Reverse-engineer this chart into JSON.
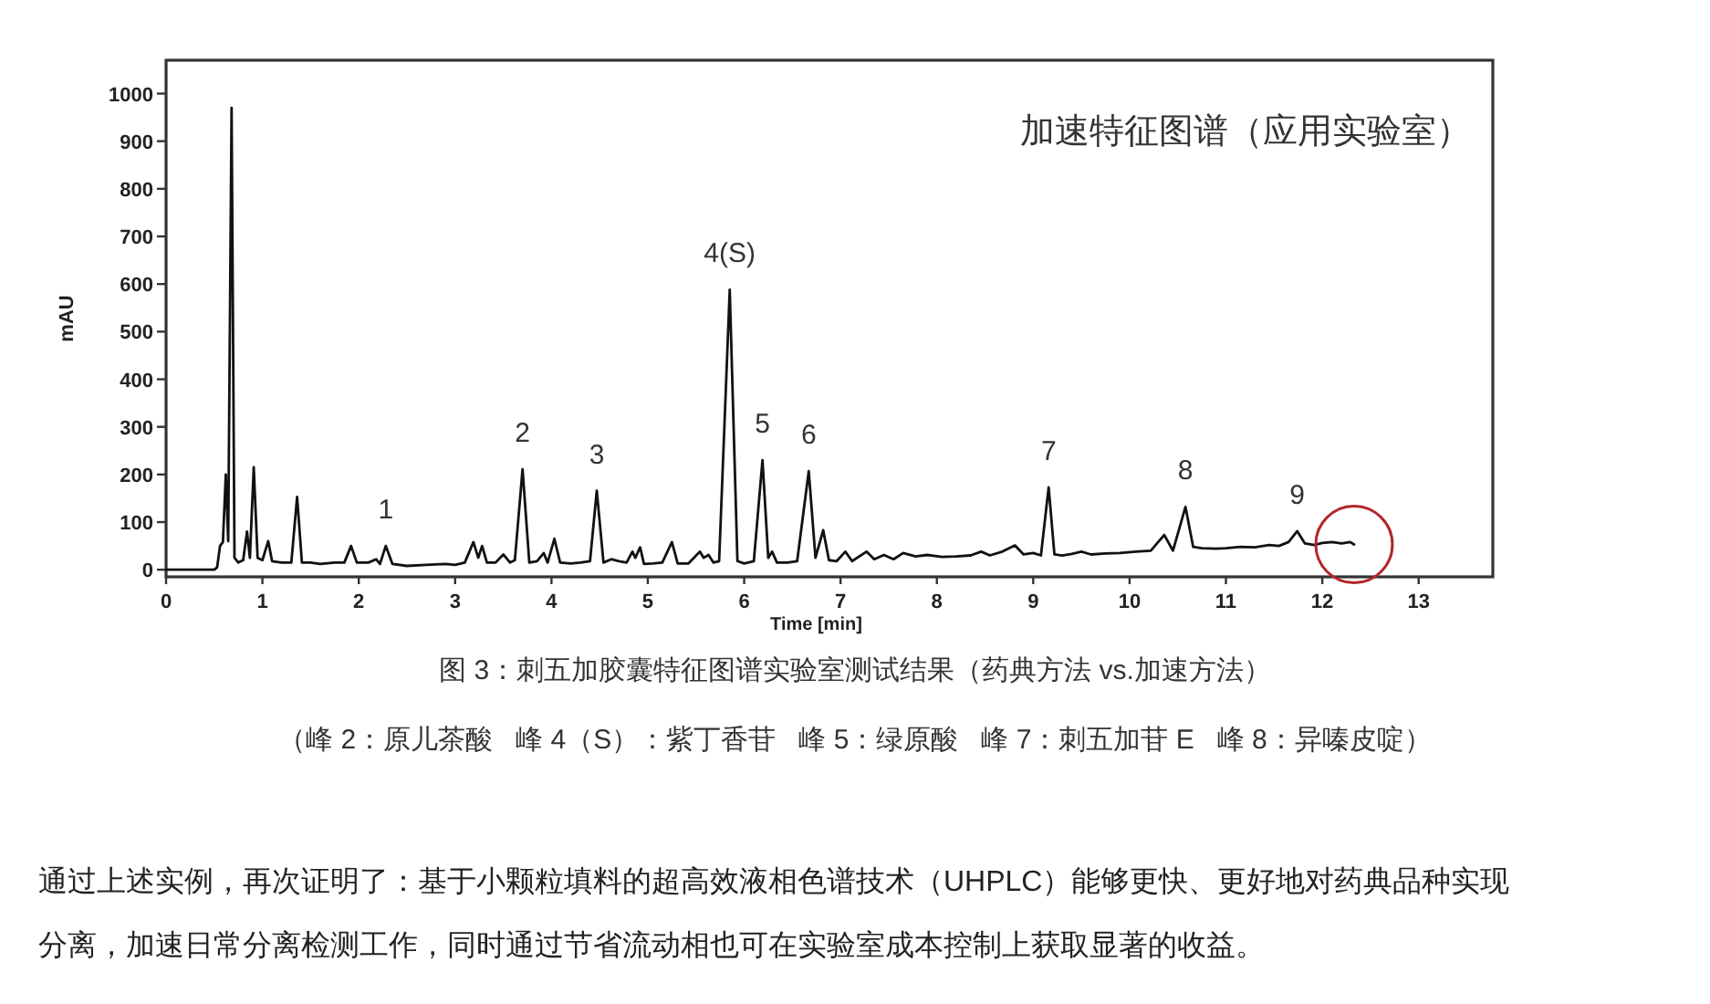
{
  "chart_data": {
    "type": "line",
    "title": "加速特征图谱（应用实验室）",
    "xlabel": "Time [min]",
    "ylabel": "mAU",
    "x": [
      0,
      0.5,
      0.53,
      0.56,
      0.59,
      0.62,
      0.645,
      0.68,
      0.71,
      0.75,
      0.8,
      0.84,
      0.87,
      0.91,
      0.95,
      1.0,
      1.06,
      1.1,
      1.2,
      1.3,
      1.36,
      1.41,
      1.5,
      1.6,
      1.75,
      1.85,
      1.92,
      1.98,
      2.1,
      2.18,
      2.22,
      2.28,
      2.35,
      2.5,
      2.7,
      2.9,
      3.0,
      3.1,
      3.19,
      3.24,
      3.28,
      3.33,
      3.42,
      3.5,
      3.57,
      3.62,
      3.7,
      3.77,
      3.85,
      3.92,
      3.96,
      4.03,
      4.09,
      4.2,
      4.3,
      4.4,
      4.47,
      4.54,
      4.62,
      4.7,
      4.78,
      4.84,
      4.87,
      4.92,
      4.96,
      5.05,
      5.15,
      5.25,
      5.31,
      5.42,
      5.54,
      5.58,
      5.63,
      5.68,
      5.74,
      5.85,
      5.93,
      6.0,
      6.1,
      6.19,
      6.25,
      6.29,
      6.34,
      6.45,
      6.55,
      6.67,
      6.74,
      6.82,
      6.88,
      6.96,
      7.05,
      7.12,
      7.27,
      7.35,
      7.45,
      7.55,
      7.65,
      7.78,
      7.9,
      8.05,
      8.2,
      8.35,
      8.46,
      8.55,
      8.68,
      8.81,
      8.9,
      9.0,
      9.08,
      9.16,
      9.22,
      9.3,
      9.4,
      9.5,
      9.6,
      9.75,
      9.9,
      10.07,
      10.22,
      10.36,
      10.45,
      10.58,
      10.66,
      10.75,
      10.9,
      11.0,
      11.15,
      11.3,
      11.45,
      11.55,
      11.65,
      11.74,
      11.82,
      11.92,
      12.0,
      12.1,
      12.2,
      12.29,
      12.33
    ],
    "series": [
      {
        "color": "#111111",
        "values": [
          0,
          0,
          5,
          50,
          58,
          200,
          60,
          970,
          25,
          15,
          20,
          80,
          25,
          215,
          25,
          20,
          60,
          18,
          15,
          15,
          153,
          15,
          15,
          12,
          15,
          15,
          50,
          15,
          15,
          22,
          12,
          50,
          12,
          8,
          10,
          12,
          10,
          15,
          58,
          25,
          50,
          15,
          15,
          32,
          15,
          20,
          211,
          15,
          18,
          35,
          15,
          65,
          15,
          13,
          15,
          18,
          166,
          15,
          22,
          18,
          15,
          38,
          25,
          47,
          12,
          13,
          15,
          58,
          13,
          13,
          38,
          25,
          31,
          15,
          18,
          588,
          18,
          13,
          18,
          230,
          25,
          38,
          15,
          15,
          18,
          207,
          25,
          83,
          20,
          18,
          38,
          18,
          38,
          22,
          31,
          22,
          35,
          28,
          31,
          27,
          28,
          30,
          38,
          30,
          38,
          51,
          32,
          35,
          30,
          173,
          32,
          30,
          33,
          38,
          32,
          34,
          35,
          38,
          40,
          73,
          40,
          132,
          48,
          45,
          44,
          45,
          48,
          47,
          52,
          50,
          58,
          81,
          55,
          52,
          56,
          58,
          55,
          58,
          53
        ]
      }
    ],
    "xlim": [
      0,
      13.77
    ],
    "ylim": [
      -15,
      1070
    ],
    "xticks": [
      0,
      1,
      2,
      3,
      4,
      5,
      6,
      7,
      8,
      9,
      10,
      11,
      12,
      13
    ],
    "yticks": [
      0,
      100,
      200,
      300,
      400,
      500,
      600,
      700,
      800,
      900,
      1000
    ],
    "line_style": "solid",
    "annotations": [
      {
        "text": "1",
        "x": 2.28,
        "y": 50
      },
      {
        "text": "2",
        "x": 3.7,
        "y": 211
      },
      {
        "text": "3",
        "x": 4.47,
        "y": 166
      },
      {
        "text": "4(S)",
        "x": 5.85,
        "y": 588
      },
      {
        "text": "5",
        "x": 6.19,
        "y": 230
      },
      {
        "text": "6",
        "x": 6.67,
        "y": 207
      },
      {
        "text": "7",
        "x": 9.16,
        "y": 173
      },
      {
        "text": "8",
        "x": 10.58,
        "y": 132
      },
      {
        "text": "9",
        "x": 11.74,
        "y": 81
      },
      "图 3：刺五加胶囊特征图谱实验室测试结果（药典方法 vs.加速方法）",
      "（峰 2：原儿茶酸   峰 4（S）：紫丁香苷   峰 5：绿原酸   峰 7：刺五加苷 E   峰 8：异嗪皮啶）",
      "通过上述实例，再次证明了：基于小颗粒填料的超高效液相色谱技术（UHPLC）能够更快、更好地对药典品种实现分离，加速日常分离检测工作，同时通过节省流动相也可在实验室成本控制上获取显著的收益。"
    ]
  }
}
